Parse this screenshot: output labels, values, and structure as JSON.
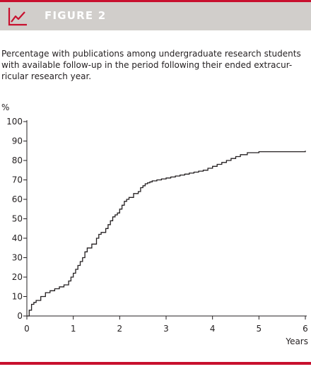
{
  "figure": {
    "label": "FIGURE 2",
    "accent_color": "#c8102e",
    "header_bg": "#d1cecb",
    "icon": "line-chart-icon",
    "caption_lines": [
      "Percentage with publications among undergraduate research students",
      "with available follow-up in the period following their ended extracur-",
      "ricular research year."
    ]
  },
  "chart_data": {
    "type": "line",
    "step": true,
    "ylabel": "%",
    "xlabel": "Years",
    "xlim": [
      0,
      6
    ],
    "ylim": [
      0,
      100
    ],
    "xticks": [
      "0",
      "1",
      "2",
      "3",
      "4",
      "5",
      "6"
    ],
    "yticks": [
      "0",
      "10",
      "20",
      "30",
      "40",
      "50",
      "60",
      "70",
      "80",
      "90",
      "100"
    ],
    "grid": false,
    "series": [
      {
        "x": [
          0,
          0.05,
          0.1,
          0.15,
          0.2,
          0.3,
          0.4,
          0.5,
          0.6,
          0.7,
          0.8,
          0.9,
          0.95,
          1.0,
          1.05,
          1.1,
          1.15,
          1.2,
          1.25,
          1.3,
          1.4,
          1.5,
          1.55,
          1.6,
          1.7,
          1.75,
          1.8,
          1.85,
          1.9,
          1.95,
          2.0,
          2.05,
          2.1,
          2.15,
          2.2,
          2.3,
          2.4,
          2.45,
          2.5,
          2.55,
          2.6,
          2.65,
          2.7,
          2.8,
          2.9,
          3.0,
          3.1,
          3.2,
          3.3,
          3.4,
          3.5,
          3.6,
          3.7,
          3.8,
          3.9,
          4.0,
          4.1,
          4.2,
          4.3,
          4.4,
          4.5,
          4.6,
          4.75,
          5.0,
          5.5,
          6.0
        ],
        "y": [
          0,
          3,
          6,
          7,
          8,
          10,
          12,
          13,
          14,
          15,
          16,
          18,
          20,
          22,
          24,
          26,
          28,
          30,
          33,
          35,
          37,
          40,
          42,
          43,
          45,
          47,
          49,
          51,
          52,
          53,
          55,
          57,
          59,
          60,
          61,
          63,
          64,
          66,
          67,
          68,
          68.5,
          69,
          69.5,
          70,
          70.5,
          71,
          71.5,
          72,
          72.5,
          73,
          73.5,
          74,
          74.5,
          75,
          76,
          77,
          78,
          79,
          80,
          81,
          82,
          83,
          84,
          84.5,
          84.5,
          85
        ]
      }
    ]
  }
}
